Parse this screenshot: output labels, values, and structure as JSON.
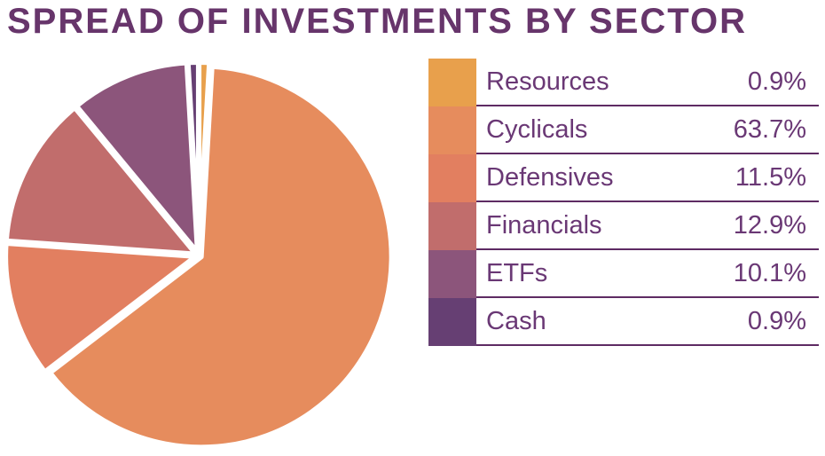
{
  "title": "SPREAD OF INVESTMENTS BY SECTOR",
  "colors": {
    "background": "#FFFFFF",
    "title_text": "#67356B",
    "legend_text": "#6A3875",
    "divider": "#5E2B63",
    "slice_stroke": "#FFFFFF"
  },
  "chart_data": {
    "type": "pie",
    "title": "SPREAD OF INVESTMENTS BY SECTOR",
    "start_angle_deg": 0,
    "direction": "clockwise",
    "legend_position": "right",
    "slices": [
      {
        "label": "Resources",
        "value": 0.9,
        "display": "0.9%",
        "color": "#E8A04C"
      },
      {
        "label": "Cyclicals",
        "value": 63.7,
        "display": "63.7%",
        "color": "#E68C5D"
      },
      {
        "label": "Defensives",
        "value": 11.5,
        "display": "11.5%",
        "color": "#E27F60"
      },
      {
        "label": "Financials",
        "value": 12.9,
        "display": "12.9%",
        "color": "#C16D6C"
      },
      {
        "label": "ETFs",
        "value": 10.1,
        "display": "10.1%",
        "color": "#8C557B"
      },
      {
        "label": "Cash",
        "value": 0.9,
        "display": "0.9%",
        "color": "#663F73"
      }
    ]
  }
}
